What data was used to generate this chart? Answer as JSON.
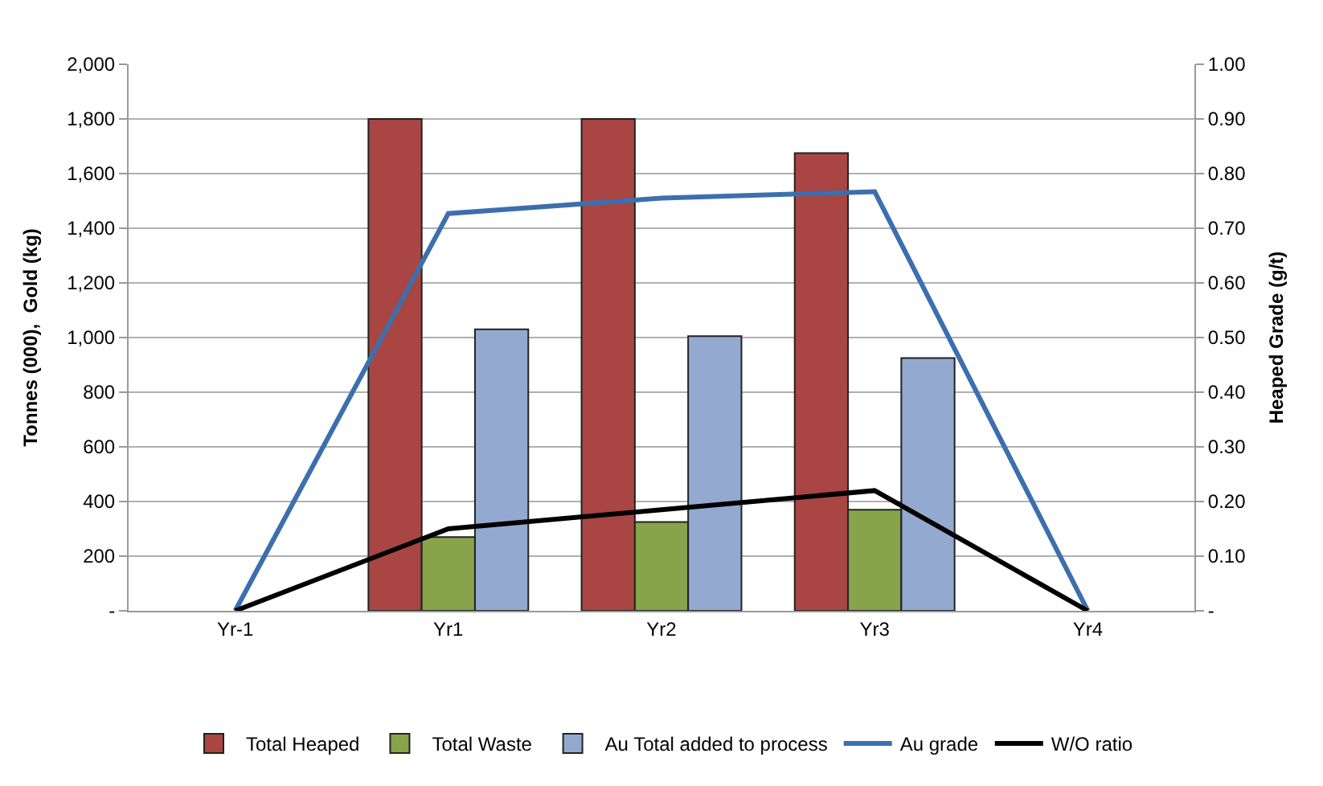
{
  "chart_data": {
    "type": "bar",
    "ylabel": "Tonnes (000),  Gold (kg)",
    "y2label": "Heaped Grade (g/t)",
    "categories": [
      "Yr-1",
      "Yr1",
      "Yr2",
      "Yr3",
      "Yr4"
    ],
    "series": [
      {
        "name": "Total Heaped",
        "color": "#a94643",
        "values": [
          null,
          1800,
          1800,
          1675,
          null
        ]
      },
      {
        "name": "Total Waste",
        "color": "#87a44b",
        "values": [
          null,
          270,
          325,
          370,
          null
        ]
      },
      {
        "name": "Au Total added to process",
        "color": "#93a9d0",
        "values": [
          null,
          1030,
          1005,
          925,
          null
        ]
      },
      {
        "name": "Au grade",
        "type": "line",
        "axis": "y2",
        "color": "#3d6fae",
        "values": [
          0,
          0.727,
          0.755,
          0.767,
          0
        ]
      },
      {
        "name": "W/O ratio",
        "type": "line",
        "axis": "y2",
        "color": "#000000",
        "values": [
          0,
          0.15,
          0.185,
          0.22,
          0
        ]
      }
    ],
    "ylim": [
      0,
      2000
    ],
    "yticks": [
      {
        "value": 0,
        "label": "-"
      },
      200,
      400,
      600,
      800,
      {
        "value": 1000,
        "label": "1,000"
      },
      {
        "value": 1200,
        "label": "1,200"
      },
      {
        "value": 1400,
        "label": "1,400"
      },
      {
        "value": 1600,
        "label": "1,600"
      },
      {
        "value": 1800,
        "label": "1,800"
      },
      {
        "value": 2000,
        "label": "2,000"
      }
    ],
    "y2lim": [
      0,
      1
    ],
    "y2ticks": [
      {
        "value": 0,
        "label": "-"
      },
      {
        "value": 0.1,
        "label": "0.10"
      },
      {
        "value": 0.2,
        "label": "0.20"
      },
      {
        "value": 0.3,
        "label": "0.30"
      },
      {
        "value": 0.4,
        "label": "0.40"
      },
      {
        "value": 0.5,
        "label": "0.50"
      },
      {
        "value": 0.6,
        "label": "0.60"
      },
      {
        "value": 0.7,
        "label": "0.70"
      },
      {
        "value": 0.8,
        "label": "0.80"
      },
      {
        "value": 0.9,
        "label": "0.90"
      },
      {
        "value": 1,
        "label": "1.00"
      }
    ],
    "grid": "y",
    "legend": "bottom",
    "line_style": "solid",
    "marker": "none"
  }
}
